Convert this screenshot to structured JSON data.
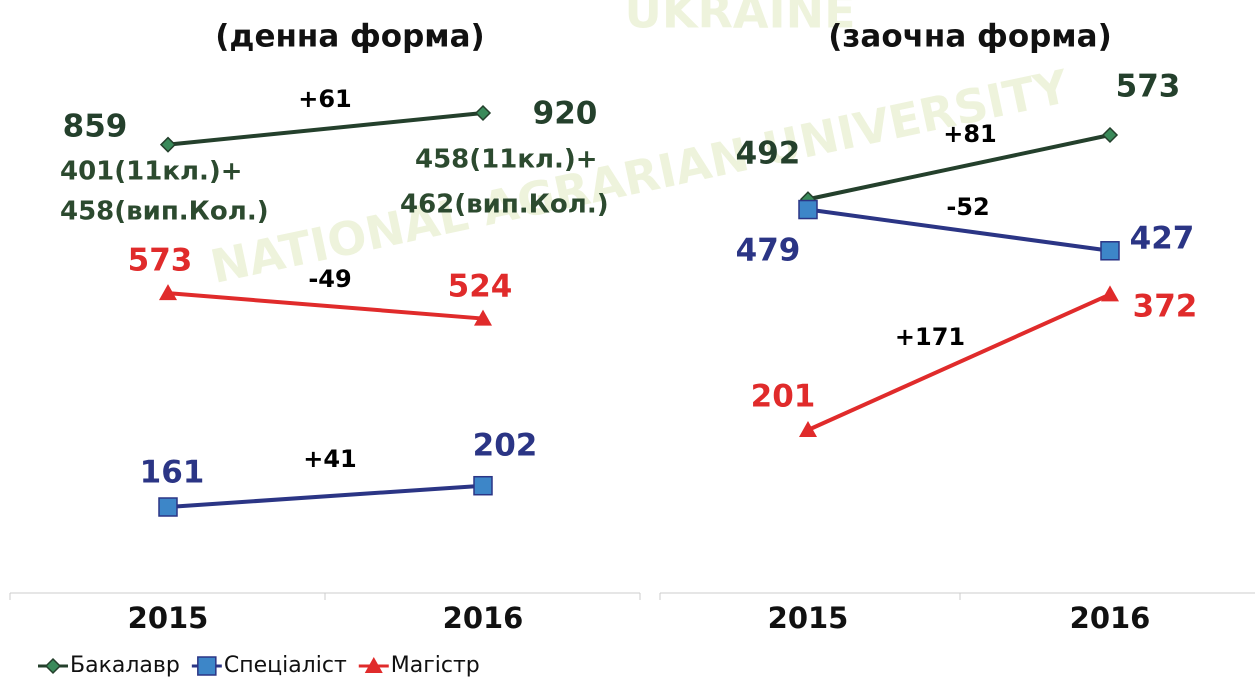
{
  "chart_data": [
    {
      "type": "line",
      "title": "(денна форма)",
      "categories": [
        "2015",
        "2016"
      ],
      "series": [
        {
          "name": "Бакалавр",
          "color": "#24402c",
          "marker": "diamond",
          "values": [
            859,
            920
          ]
        },
        {
          "name": "Спеціаліст",
          "color": "#2b3585",
          "marker": "square",
          "values": [
            161,
            202
          ]
        },
        {
          "name": "Магістр",
          "color": "#e02b2b",
          "marker": "triangle",
          "values": [
            573,
            524
          ]
        }
      ],
      "annotations": [
        "+61",
        "+41",
        "-49"
      ],
      "notes": [
        "401(11кл.)+",
        "458(вип.Кол.)",
        "458(11кл.)+",
        "462(вип.Кол.)"
      ]
    },
    {
      "type": "line",
      "title": "(заочна форма)",
      "categories": [
        "2015",
        "2016"
      ],
      "series": [
        {
          "name": "Бакалавр",
          "color": "#24402c",
          "marker": "diamond",
          "values": [
            492,
            573
          ]
        },
        {
          "name": "Спеціаліст",
          "color": "#2b3585",
          "marker": "square",
          "values": [
            479,
            427
          ]
        },
        {
          "name": "Магістр",
          "color": "#e02b2b",
          "marker": "triangle",
          "values": [
            201,
            372
          ]
        }
      ],
      "annotations": [
        "+81",
        "-52",
        "+171"
      ]
    }
  ],
  "watermark": [
    "UKRAINE",
    "NATIONAL AGRARIAN UNIVERSITY"
  ]
}
